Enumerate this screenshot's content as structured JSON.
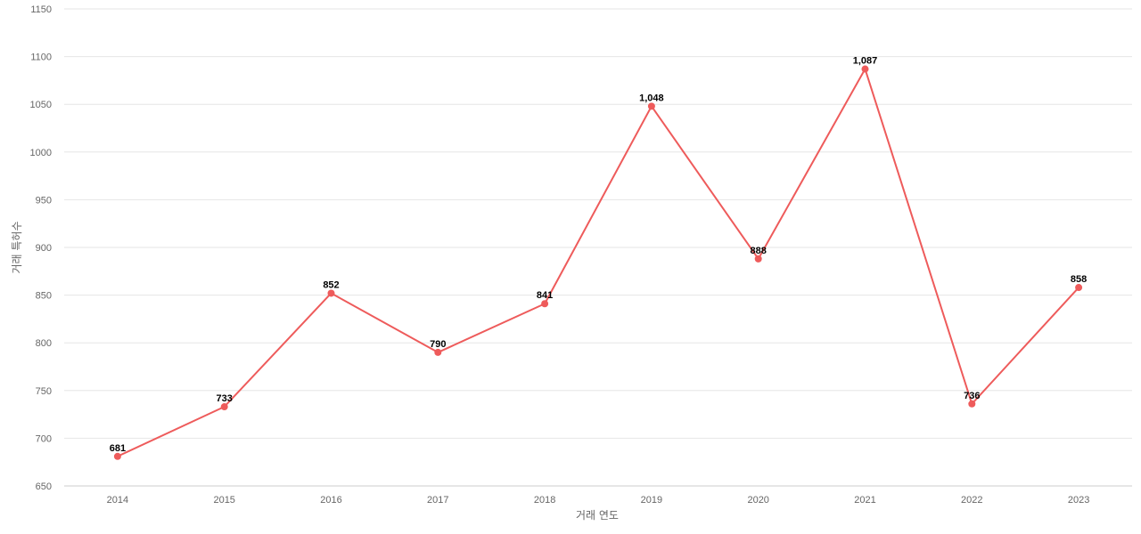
{
  "chart_data": {
    "type": "line",
    "title": "",
    "xlabel": "거래 연도",
    "ylabel": "거래 특허수",
    "categories": [
      "2014",
      "2015",
      "2016",
      "2017",
      "2018",
      "2019",
      "2020",
      "2021",
      "2022",
      "2023"
    ],
    "series": [
      {
        "values": [
          681,
          733,
          852,
          790,
          841,
          1048,
          888,
          1087,
          736,
          858
        ],
        "data_labels": [
          "681",
          "733",
          "852",
          "790",
          "841",
          "1,048",
          "888",
          "1,087",
          "736",
          "858"
        ],
        "color": "#ee5b5b"
      }
    ],
    "ylim": [
      650,
      1150
    ],
    "yticks": [
      "650",
      "700",
      "750",
      "800",
      "850",
      "900",
      "950",
      "1000",
      "1050",
      "1100",
      "1150"
    ],
    "grid": true,
    "legend": "none"
  }
}
